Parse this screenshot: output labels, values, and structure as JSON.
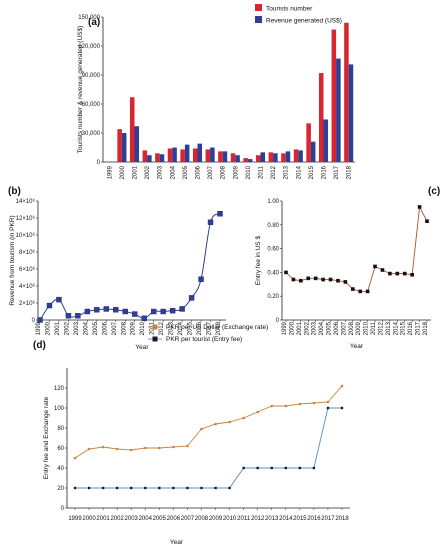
{
  "chart_data": [
    {
      "panel": "(a)",
      "type": "bar",
      "title": "",
      "xlabel": "",
      "ylabel": "Tourists number & revenue generated (US$)",
      "ylim": [
        0,
        150000
      ],
      "yticks": [
        "0",
        "30,000",
        "60,000",
        "90,000",
        "120,000",
        "150,000"
      ],
      "legend_position": "top-right",
      "categories": [
        "1999",
        "2000",
        "2001",
        "2002",
        "2003",
        "2004",
        "2005",
        "2006",
        "2007",
        "2008",
        "2009",
        "2010",
        "2011",
        "2012",
        "2013",
        "2014",
        "2015",
        "2016",
        "2017",
        "2018"
      ],
      "series": [
        {
          "name": "Tourists number",
          "color": "#d7262f",
          "values": [
            500,
            34000,
            67000,
            12000,
            9000,
            14000,
            13000,
            14000,
            13000,
            11000,
            9000,
            4000,
            7000,
            10000,
            9000,
            13000,
            40000,
            92000,
            137000,
            144000
          ]
        },
        {
          "name": "Revenue generated (US$)",
          "color": "#2e3f95",
          "values": [
            300,
            30000,
            37000,
            7000,
            8000,
            15000,
            18000,
            19000,
            15000,
            11000,
            7000,
            3000,
            10000,
            9000,
            11000,
            12000,
            21000,
            44000,
            107000,
            101000
          ]
        }
      ]
    },
    {
      "panel": "(b)",
      "type": "line",
      "title": "",
      "xlabel": "Year",
      "ylabel": "Revenue from tourism (in PKR)",
      "ylim": [
        0,
        14000000
      ],
      "yticks": [
        "0",
        "2×10⁶",
        "4×10⁶",
        "6×10⁶",
        "8×10⁶",
        "10×10⁶",
        "12×10⁶",
        "14×10⁶"
      ],
      "color": "#2e3f95",
      "x": [
        "1999",
        "2000",
        "2001",
        "2002",
        "2003",
        "2004",
        "2005",
        "2006",
        "2007",
        "2008",
        "2009",
        "2010",
        "2011",
        "2012",
        "2013",
        "2014",
        "2015",
        "2016",
        "2017",
        "2018"
      ],
      "values": [
        0,
        1700000,
        2400000,
        500000,
        500000,
        1000000,
        1200000,
        1300000,
        1200000,
        1000000,
        700000,
        200000,
        1000000,
        1000000,
        1100000,
        1300000,
        2600000,
        4800000,
        11500000,
        12500000
      ]
    },
    {
      "panel": "(c)",
      "type": "line",
      "title": "",
      "xlabel": "Year",
      "ylabel": "Entry fee in US $",
      "ylim": [
        0,
        1.0
      ],
      "yticks": [
        "0",
        "0.20",
        "0.40",
        "0.60",
        "0.80",
        "1.00"
      ],
      "color": "#b5502e",
      "x": [
        "1999",
        "2000",
        "2001",
        "2002",
        "2003",
        "2004",
        "2005",
        "2006",
        "2007",
        "2008",
        "2009",
        "2010",
        "2011",
        "2012",
        "2013",
        "2014",
        "2015",
        "2016",
        "2017",
        "2018"
      ],
      "values": [
        0.4,
        0.34,
        0.33,
        0.35,
        0.35,
        0.34,
        0.34,
        0.33,
        0.32,
        0.26,
        0.24,
        0.24,
        0.45,
        0.42,
        0.39,
        0.39,
        0.39,
        0.38,
        0.95,
        0.83
      ]
    },
    {
      "panel": "(d)",
      "type": "line",
      "title": "",
      "xlabel": "Year",
      "ylabel": "Entry fee and Exchange rate",
      "ylim": [
        0,
        140
      ],
      "yticks": [
        "0",
        "20",
        "40",
        "60",
        "80",
        "100",
        "120"
      ],
      "legend_position": "top",
      "x": [
        "1999",
        "2000",
        "2001",
        "2002",
        "2003",
        "2004",
        "2005",
        "2006",
        "2007",
        "2008",
        "2009",
        "2010",
        "2011",
        "2012",
        "2013",
        "2014",
        "2015",
        "2016",
        "2017",
        "2018"
      ],
      "series": [
        {
          "name": "PKR per US Dollar (Exchange rate)",
          "color": "#c8843d",
          "marker_color": "#c8843d",
          "values": [
            50,
            59,
            61,
            59,
            58,
            60,
            60,
            61,
            62,
            79,
            84,
            86,
            90,
            96,
            102,
            102,
            104,
            105,
            106,
            122
          ]
        },
        {
          "name": "PKR per tourist (Entry fee)",
          "color": "#5b8ec9",
          "marker_color": "#1a1a2e",
          "values": [
            20,
            20,
            20,
            20,
            20,
            20,
            20,
            20,
            20,
            20,
            20,
            20,
            40,
            40,
            40,
            40,
            40,
            40,
            100,
            100
          ]
        }
      ]
    }
  ]
}
